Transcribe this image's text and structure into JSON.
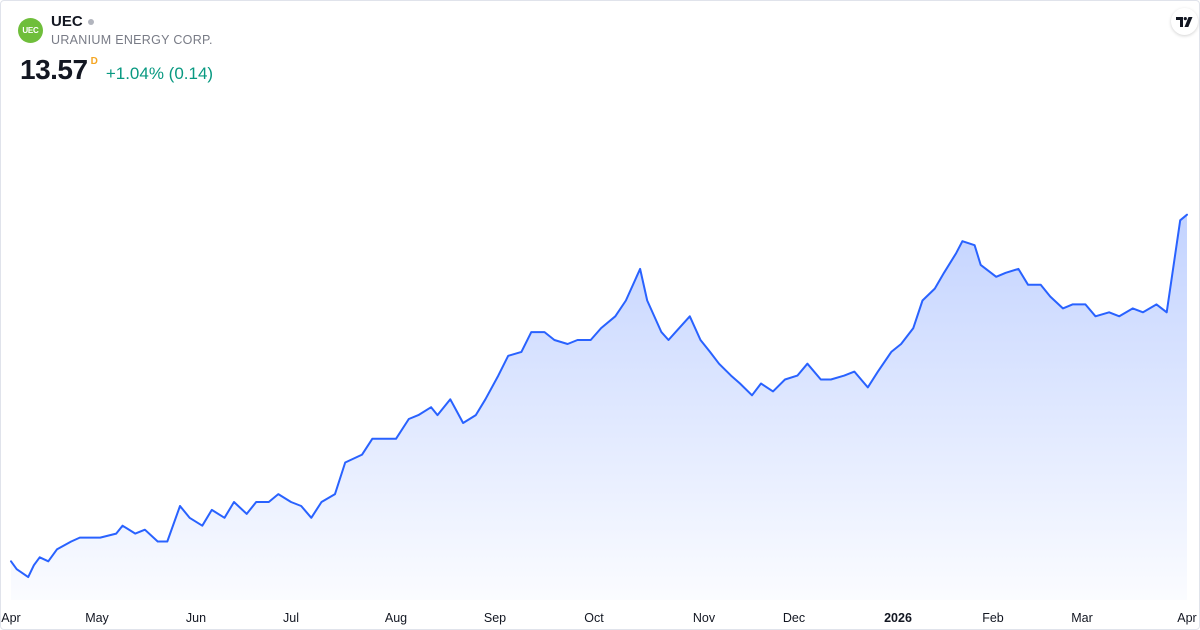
{
  "header": {
    "logo_text": "UEC",
    "symbol": "UEC",
    "company": "URANIUM ENERGY CORP.",
    "price": "13.57",
    "price_flag": "D",
    "change": "+1.04% (0.14)"
  },
  "icons": {
    "logo": "uec-logo-icon",
    "status": "market-status-dot-icon",
    "brand": "tradingview-logo-icon"
  },
  "colors": {
    "line": "#2962ff",
    "up": "#089981",
    "logo_bg": "#6fbe3b",
    "flag": "#f5a623"
  },
  "chart_data": {
    "type": "area",
    "x_tick_labels": [
      "Apr",
      "May",
      "Jun",
      "Jul",
      "Aug",
      "Sep",
      "Oct",
      "Nov",
      "Dec",
      "2026",
      "Feb",
      "Mar",
      "Apr"
    ],
    "x_tick_bold": [
      false,
      false,
      false,
      false,
      false,
      false,
      false,
      false,
      false,
      true,
      false,
      false,
      false
    ],
    "x_tick_dates": [
      "2025-04-01",
      "2025-05-01",
      "2025-06-01",
      "2025-07-01",
      "2025-08-01",
      "2025-09-01",
      "2025-10-01",
      "2025-11-01",
      "2025-12-01",
      "2026-01-01",
      "2026-02-01",
      "2026-03-01",
      "2026-04-01"
    ],
    "ylim": [
      4.2,
      16.6
    ],
    "grid": false,
    "series": [
      {
        "values": [
          {
            "x": "2025-04-01",
            "y": 4.8
          },
          {
            "x": "2025-04-03",
            "y": 4.6
          },
          {
            "x": "2025-04-07",
            "y": 4.4
          },
          {
            "x": "2025-04-09",
            "y": 4.7
          },
          {
            "x": "2025-04-11",
            "y": 4.9
          },
          {
            "x": "2025-04-14",
            "y": 4.8
          },
          {
            "x": "2025-04-17",
            "y": 5.1
          },
          {
            "x": "2025-04-22",
            "y": 5.3
          },
          {
            "x": "2025-04-25",
            "y": 5.4
          },
          {
            "x": "2025-04-29",
            "y": 5.4
          },
          {
            "x": "2025-05-02",
            "y": 5.4
          },
          {
            "x": "2025-05-07",
            "y": 5.5
          },
          {
            "x": "2025-05-09",
            "y": 5.7
          },
          {
            "x": "2025-05-13",
            "y": 5.5
          },
          {
            "x": "2025-05-16",
            "y": 5.6
          },
          {
            "x": "2025-05-20",
            "y": 5.3
          },
          {
            "x": "2025-05-23",
            "y": 5.3
          },
          {
            "x": "2025-05-27",
            "y": 6.2
          },
          {
            "x": "2025-05-30",
            "y": 5.9
          },
          {
            "x": "2025-06-03",
            "y": 5.7
          },
          {
            "x": "2025-06-06",
            "y": 6.1
          },
          {
            "x": "2025-06-10",
            "y": 5.9
          },
          {
            "x": "2025-06-13",
            "y": 6.3
          },
          {
            "x": "2025-06-17",
            "y": 6.0
          },
          {
            "x": "2025-06-20",
            "y": 6.3
          },
          {
            "x": "2025-06-24",
            "y": 6.3
          },
          {
            "x": "2025-06-27",
            "y": 6.5
          },
          {
            "x": "2025-07-01",
            "y": 6.3
          },
          {
            "x": "2025-07-04",
            "y": 6.2
          },
          {
            "x": "2025-07-07",
            "y": 5.9
          },
          {
            "x": "2025-07-10",
            "y": 6.3
          },
          {
            "x": "2025-07-14",
            "y": 6.5
          },
          {
            "x": "2025-07-17",
            "y": 7.3
          },
          {
            "x": "2025-07-22",
            "y": 7.5
          },
          {
            "x": "2025-07-25",
            "y": 7.9
          },
          {
            "x": "2025-07-29",
            "y": 7.9
          },
          {
            "x": "2025-08-01",
            "y": 7.9
          },
          {
            "x": "2025-08-05",
            "y": 8.4
          },
          {
            "x": "2025-08-08",
            "y": 8.5
          },
          {
            "x": "2025-08-12",
            "y": 8.7
          },
          {
            "x": "2025-08-14",
            "y": 8.5
          },
          {
            "x": "2025-08-18",
            "y": 8.9
          },
          {
            "x": "2025-08-20",
            "y": 8.6
          },
          {
            "x": "2025-08-22",
            "y": 8.3
          },
          {
            "x": "2025-08-26",
            "y": 8.5
          },
          {
            "x": "2025-08-29",
            "y": 8.9
          },
          {
            "x": "2025-09-02",
            "y": 9.5
          },
          {
            "x": "2025-09-05",
            "y": 10.0
          },
          {
            "x": "2025-09-09",
            "y": 10.1
          },
          {
            "x": "2025-09-12",
            "y": 10.6
          },
          {
            "x": "2025-09-16",
            "y": 10.6
          },
          {
            "x": "2025-09-19",
            "y": 10.4
          },
          {
            "x": "2025-09-23",
            "y": 10.3
          },
          {
            "x": "2025-09-26",
            "y": 10.4
          },
          {
            "x": "2025-09-30",
            "y": 10.4
          },
          {
            "x": "2025-10-03",
            "y": 10.7
          },
          {
            "x": "2025-10-07",
            "y": 11.0
          },
          {
            "x": "2025-10-10",
            "y": 11.4
          },
          {
            "x": "2025-10-14",
            "y": 12.2
          },
          {
            "x": "2025-10-16",
            "y": 11.4
          },
          {
            "x": "2025-10-20",
            "y": 10.6
          },
          {
            "x": "2025-10-22",
            "y": 10.4
          },
          {
            "x": "2025-10-24",
            "y": 10.6
          },
          {
            "x": "2025-10-28",
            "y": 11.0
          },
          {
            "x": "2025-10-31",
            "y": 10.4
          },
          {
            "x": "2025-11-03",
            "y": 10.1
          },
          {
            "x": "2025-11-06",
            "y": 9.8
          },
          {
            "x": "2025-11-10",
            "y": 9.5
          },
          {
            "x": "2025-11-13",
            "y": 9.3
          },
          {
            "x": "2025-11-17",
            "y": 9.0
          },
          {
            "x": "2025-11-20",
            "y": 9.3
          },
          {
            "x": "2025-11-24",
            "y": 9.1
          },
          {
            "x": "2025-11-28",
            "y": 9.4
          },
          {
            "x": "2025-12-02",
            "y": 9.5
          },
          {
            "x": "2025-12-05",
            "y": 9.8
          },
          {
            "x": "2025-12-09",
            "y": 9.4
          },
          {
            "x": "2025-12-12",
            "y": 9.4
          },
          {
            "x": "2025-12-16",
            "y": 9.5
          },
          {
            "x": "2025-12-19",
            "y": 9.6
          },
          {
            "x": "2025-12-23",
            "y": 9.2
          },
          {
            "x": "2025-12-26",
            "y": 9.6
          },
          {
            "x": "2025-12-30",
            "y": 10.1
          },
          {
            "x": "2026-01-02",
            "y": 10.3
          },
          {
            "x": "2026-01-06",
            "y": 10.7
          },
          {
            "x": "2026-01-09",
            "y": 11.4
          },
          {
            "x": "2026-01-13",
            "y": 11.7
          },
          {
            "x": "2026-01-16",
            "y": 12.1
          },
          {
            "x": "2026-01-20",
            "y": 12.6
          },
          {
            "x": "2026-01-22",
            "y": 12.9
          },
          {
            "x": "2026-01-26",
            "y": 12.8
          },
          {
            "x": "2026-01-28",
            "y": 12.3
          },
          {
            "x": "2026-02-02",
            "y": 12.0
          },
          {
            "x": "2026-02-05",
            "y": 12.1
          },
          {
            "x": "2026-02-09",
            "y": 12.2
          },
          {
            "x": "2026-02-12",
            "y": 11.8
          },
          {
            "x": "2026-02-16",
            "y": 11.8
          },
          {
            "x": "2026-02-19",
            "y": 11.5
          },
          {
            "x": "2026-02-23",
            "y": 11.2
          },
          {
            "x": "2026-02-26",
            "y": 11.3
          },
          {
            "x": "2026-03-02",
            "y": 11.3
          },
          {
            "x": "2026-03-05",
            "y": 11.0
          },
          {
            "x": "2026-03-09",
            "y": 11.1
          },
          {
            "x": "2026-03-12",
            "y": 11.0
          },
          {
            "x": "2026-03-16",
            "y": 11.2
          },
          {
            "x": "2026-03-19",
            "y": 11.1
          },
          {
            "x": "2026-03-23",
            "y": 11.3
          },
          {
            "x": "2026-03-26",
            "y": 11.1
          },
          {
            "x": "2026-03-30",
            "y": 13.43
          },
          {
            "x": "2026-04-02",
            "y": 13.57
          }
        ]
      }
    ]
  }
}
